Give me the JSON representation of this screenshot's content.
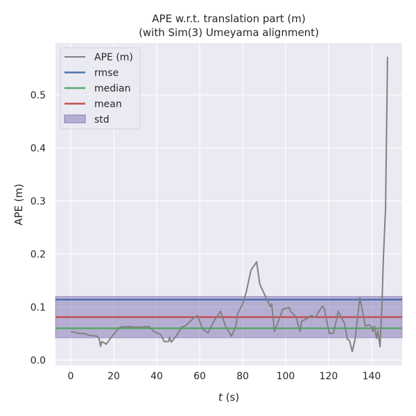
{
  "chart_data": {
    "type": "line",
    "title": "APE w.r.t. translation part (m)",
    "subtitle": "(with Sim(3) Umeyama alignment)",
    "xlabel_italic": "t",
    "xlabel_rest": " (s)",
    "ylabel": "APE (m)",
    "xlim": [
      -7.1,
      154.2
    ],
    "ylim": [
      -0.01,
      0.598
    ],
    "xticks": [
      0,
      20,
      40,
      60,
      80,
      100,
      120,
      140
    ],
    "xtick_labels": [
      "0",
      "20",
      "40",
      "60",
      "80",
      "100",
      "120",
      "140"
    ],
    "yticks": [
      0.0,
      0.1,
      0.2,
      0.3,
      0.4,
      0.5
    ],
    "ytick_labels": [
      "0.0",
      "0.1",
      "0.2",
      "0.3",
      "0.4",
      "0.5"
    ],
    "grid": true,
    "legend_placement": "top-left",
    "legend": [
      "APE (m)",
      "rmse",
      "median",
      "mean",
      "std"
    ],
    "colors": {
      "ape": "#808080",
      "rmse": "#4c72b0",
      "median": "#55a868",
      "mean": "#c44e52",
      "std": "#8172b2",
      "background": "#eaeaf2"
    },
    "stats": {
      "rmse": 0.114,
      "median": 0.06,
      "mean": 0.081,
      "std_low": 0.042,
      "std_high": 0.12
    },
    "series": [
      {
        "name": "APE (m)",
        "x": [
          0,
          4.2,
          6.5,
          8.4,
          12.3,
          13.2,
          13.9,
          14.5,
          16.5,
          18.7,
          21,
          22.9,
          26.8,
          30,
          36.5,
          38.7,
          41.9,
          43.5,
          45.5,
          46,
          46.8,
          49.4,
          51.6,
          53.5,
          57.4,
          59,
          61.3,
          63.9,
          66.5,
          69.7,
          72,
          74.8,
          76.8,
          77.7,
          80,
          81.6,
          83.9,
          86.5,
          88,
          91.3,
          92.9,
          93.5,
          94.8,
          98.7,
          101.6,
          102.6,
          104.8,
          105.8,
          106.8,
          107.4,
          110.6,
          111.6,
          113.9,
          117.1,
          118,
          120.3,
          122.3,
          124.5,
          127.4,
          128.7,
          129.7,
          131,
          132.3,
          134.5,
          137.1,
          138.7,
          140,
          140.6,
          141.3,
          142.3,
          142.9,
          143.9,
          144.8,
          145.5,
          146.5,
          147.4
        ],
        "y": [
          0.054,
          0.05,
          0.05,
          0.047,
          0.045,
          0.041,
          0.026,
          0.035,
          0.03,
          0.042,
          0.054,
          0.062,
          0.063,
          0.062,
          0.063,
          0.054,
          0.048,
          0.035,
          0.035,
          0.043,
          0.034,
          0.047,
          0.062,
          0.065,
          0.08,
          0.084,
          0.059,
          0.051,
          0.073,
          0.092,
          0.064,
          0.045,
          0.064,
          0.088,
          0.106,
          0.127,
          0.17,
          0.185,
          0.143,
          0.114,
          0.101,
          0.106,
          0.054,
          0.096,
          0.099,
          0.09,
          0.082,
          0.067,
          0.054,
          0.073,
          0.08,
          0.084,
          0.081,
          0.102,
          0.097,
          0.05,
          0.051,
          0.092,
          0.069,
          0.039,
          0.037,
          0.016,
          0.039,
          0.118,
          0.064,
          0.067,
          0.063,
          0.054,
          0.064,
          0.041,
          0.055,
          0.025,
          0.103,
          0.195,
          0.287,
          0.572
        ]
      }
    ]
  }
}
